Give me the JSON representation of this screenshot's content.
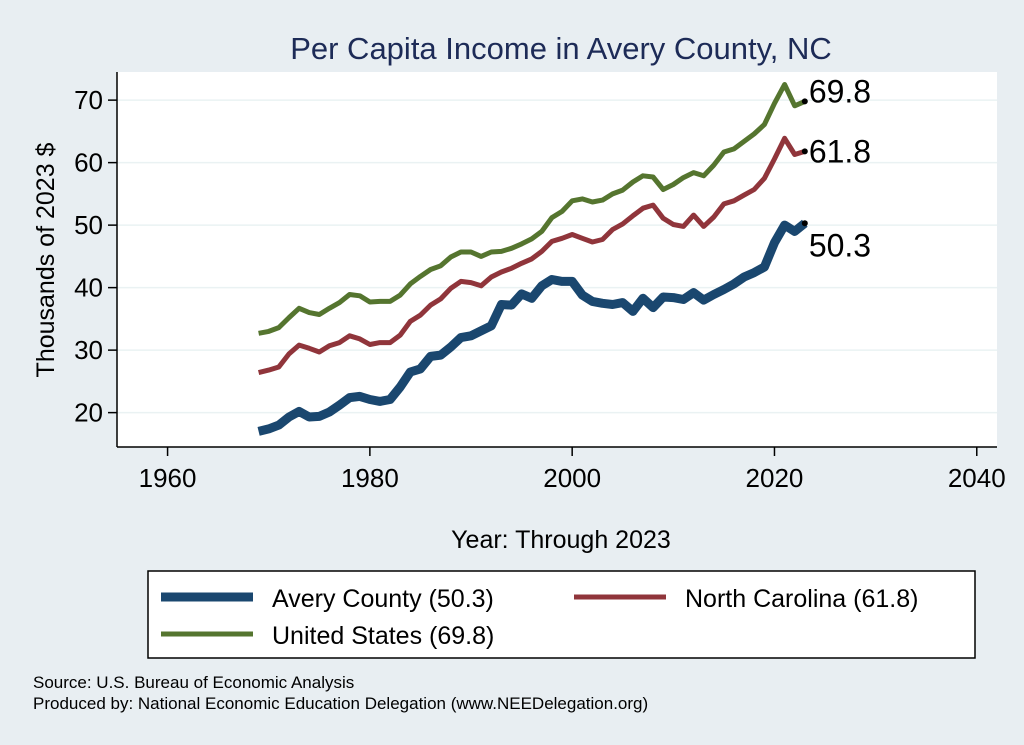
{
  "chart_data": {
    "type": "line",
    "title": "Per Capita Income in Avery County, NC",
    "xlabel": "Year: Through 2023",
    "ylabel": "Thousands of 2023 $",
    "xlim": [
      1955,
      2042
    ],
    "ylim": [
      14.5,
      74.5
    ],
    "xticks": [
      "1960",
      "1980",
      "2000",
      "2020",
      "2040"
    ],
    "yticks": [
      "20",
      "30",
      "40",
      "50",
      "60",
      "70"
    ],
    "grid": "horizontal",
    "legend_position": "bottom",
    "x": [
      1969,
      1970,
      1971,
      1972,
      1973,
      1974,
      1975,
      1976,
      1977,
      1978,
      1979,
      1980,
      1981,
      1982,
      1983,
      1984,
      1985,
      1986,
      1987,
      1988,
      1989,
      1990,
      1991,
      1992,
      1993,
      1994,
      1995,
      1996,
      1997,
      1998,
      1999,
      2000,
      2001,
      2002,
      2003,
      2004,
      2005,
      2006,
      2007,
      2008,
      2009,
      2010,
      2011,
      2012,
      2013,
      2014,
      2015,
      2016,
      2017,
      2018,
      2019,
      2020,
      2021,
      2022,
      2023
    ],
    "series": [
      {
        "name": "Avery County (50.3)",
        "color": "#1a476f",
        "end_label": "50.3",
        "values": [
          17.0,
          17.4,
          18.0,
          19.3,
          20.2,
          19.3,
          19.4,
          20.1,
          21.2,
          22.4,
          22.6,
          22.1,
          21.8,
          22.1,
          24.1,
          26.5,
          27.0,
          29.0,
          29.2,
          30.5,
          32.0,
          32.3,
          33.1,
          33.9,
          37.3,
          37.2,
          39.0,
          38.3,
          40.3,
          41.3,
          41.0,
          41.0,
          38.8,
          37.8,
          37.5,
          37.3,
          37.6,
          36.2,
          38.3,
          36.8,
          38.5,
          38.4,
          38.1,
          39.2,
          38.0,
          38.9,
          39.7,
          40.6,
          41.7,
          42.4,
          43.3,
          47.2,
          50.0,
          49.0,
          50.3
        ]
      },
      {
        "name": "North Carolina (61.8)",
        "color": "#90353b",
        "end_label": "61.8",
        "values": [
          26.4,
          26.8,
          27.3,
          29.4,
          30.8,
          30.3,
          29.7,
          30.7,
          31.2,
          32.3,
          31.8,
          30.9,
          31.2,
          31.2,
          32.4,
          34.6,
          35.6,
          37.2,
          38.2,
          39.9,
          41.0,
          40.8,
          40.3,
          41.7,
          42.5,
          43.1,
          43.9,
          44.6,
          45.8,
          47.4,
          47.9,
          48.5,
          47.9,
          47.3,
          47.7,
          49.3,
          50.2,
          51.5,
          52.7,
          53.2,
          51.1,
          50.1,
          49.8,
          51.6,
          49.8,
          51.3,
          53.4,
          53.9,
          54.8,
          55.7,
          57.5,
          60.6,
          63.9,
          61.3,
          61.8
        ]
      },
      {
        "name": "United States (69.8)",
        "color": "#55752f",
        "end_label": "69.8",
        "values": [
          32.7,
          33.0,
          33.6,
          35.2,
          36.7,
          36.0,
          35.7,
          36.7,
          37.6,
          38.9,
          38.7,
          37.7,
          37.8,
          37.8,
          38.8,
          40.6,
          41.8,
          42.9,
          43.5,
          44.9,
          45.7,
          45.7,
          45.0,
          45.7,
          45.8,
          46.3,
          47.0,
          47.8,
          49.0,
          51.2,
          52.2,
          53.9,
          54.2,
          53.7,
          54.0,
          55.0,
          55.6,
          56.9,
          57.9,
          57.7,
          55.7,
          56.5,
          57.6,
          58.4,
          57.9,
          59.6,
          61.7,
          62.2,
          63.4,
          64.6,
          66.1,
          69.5,
          72.5,
          69.1,
          69.8
        ]
      }
    ],
    "notes": [
      "Source: U.S. Bureau of Economic Analysis",
      "Produced by: National Economic Education Delegation (www.NEEDelegation.org)"
    ]
  }
}
